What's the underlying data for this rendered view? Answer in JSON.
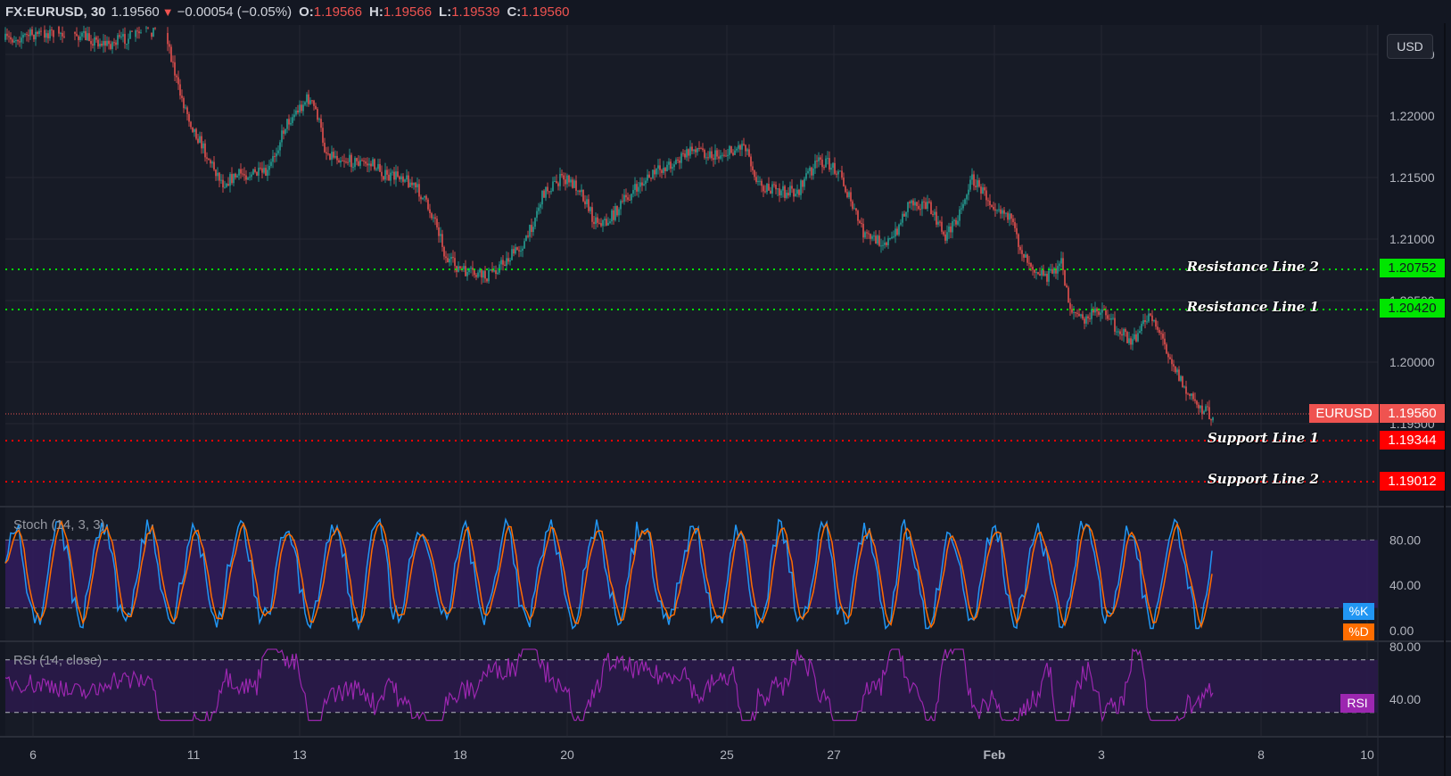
{
  "header": {
    "symbol": "FX:EURUSD, 30",
    "last": "1.19560",
    "direction_icon": "triangle-down-icon",
    "direction_glyph": "▼",
    "change": "−0.00054 (−0.05%)",
    "open_label": "O:",
    "open": "1.19566",
    "high_label": "H:",
    "high": "1.19566",
    "low_label": "L:",
    "low": "1.19539",
    "close_label": "C:",
    "close": "1.19560"
  },
  "price_axis": {
    "currency": "USD",
    "ticks": [
      "1.22500",
      "1.22000",
      "1.21500",
      "1.21000",
      "1.20500",
      "1.20000",
      "1.19500"
    ]
  },
  "levels": [
    {
      "label": "Resistance Line 2",
      "value": "1.20752",
      "color": "#00e600",
      "type": "resistance"
    },
    {
      "label": "Resistance Line 1",
      "value": "1.20420",
      "color": "#00e600",
      "type": "resistance"
    },
    {
      "label": "Support Line 1",
      "value": "1.19344",
      "color": "#ff0000",
      "type": "support"
    },
    {
      "label": "Support Line 2",
      "value": "1.19012",
      "color": "#ff0000",
      "type": "support"
    }
  ],
  "current_price": {
    "label": "EURUSD",
    "value": "1.19560",
    "color": "#ef5350"
  },
  "stoch": {
    "title": "Stoch (14, 3, 3)",
    "ticks": [
      "80.00",
      "40.00",
      "0.00"
    ],
    "k_label": "%K",
    "k_color": "#2196f3",
    "d_label": "%D",
    "d_color": "#ff6d00"
  },
  "rsi": {
    "title": "RSI (14, close)",
    "ticks": [
      "80.00",
      "40.00"
    ],
    "label": "RSI",
    "color": "#9c27b0"
  },
  "time_axis": {
    "ticks": [
      "6",
      "11",
      "13",
      "18",
      "20",
      "25",
      "27",
      "Feb",
      "3",
      "8",
      "10"
    ]
  },
  "colors": {
    "background": "#131722",
    "up": "#26a69a",
    "down": "#ef5350",
    "band_fill": "#2a1a4a"
  },
  "chart_data": {
    "type": "candlestick",
    "title": "FX:EURUSD, 30",
    "xlabel": "",
    "ylabel": "USD",
    "ylim": [
      1.188,
      1.227
    ],
    "x_ticks": [
      "6",
      "11",
      "13",
      "18",
      "20",
      "25",
      "27",
      "Feb",
      "3",
      "8",
      "10"
    ],
    "approx_close_path": [
      {
        "x": "6",
        "y": 1.224
      },
      {
        "x": "11",
        "y": 1.219
      },
      {
        "x": "13",
        "y": 1.222
      },
      {
        "x": "18",
        "y": 1.208
      },
      {
        "x": "20",
        "y": 1.214
      },
      {
        "x": "25",
        "y": 1.217
      },
      {
        "x": "27",
        "y": 1.2165
      },
      {
        "x": "28",
        "y": 1.21
      },
      {
        "x": "Feb",
        "y": 1.2135
      },
      {
        "x": "2",
        "y": 1.205
      },
      {
        "x": "3",
        "y": 1.204
      },
      {
        "x": "5",
        "y": 1.1956
      }
    ],
    "horizontal_lines": [
      {
        "name": "Resistance Line 2",
        "value": 1.20752
      },
      {
        "name": "Resistance Line 1",
        "value": 1.2042
      },
      {
        "name": "Support Line 1",
        "value": 1.19344
      },
      {
        "name": "Support Line 2",
        "value": 1.19012
      }
    ],
    "last_price": 1.1956,
    "indicators": [
      {
        "name": "Stoch (14, 3, 3)",
        "series": [
          "%K",
          "%D"
        ],
        "band": [
          20,
          80
        ],
        "ylim": [
          0,
          100
        ]
      },
      {
        "name": "RSI (14, close)",
        "series": [
          "RSI"
        ],
        "band": [
          30,
          70
        ],
        "ylim": [
          20,
          80
        ]
      }
    ]
  }
}
